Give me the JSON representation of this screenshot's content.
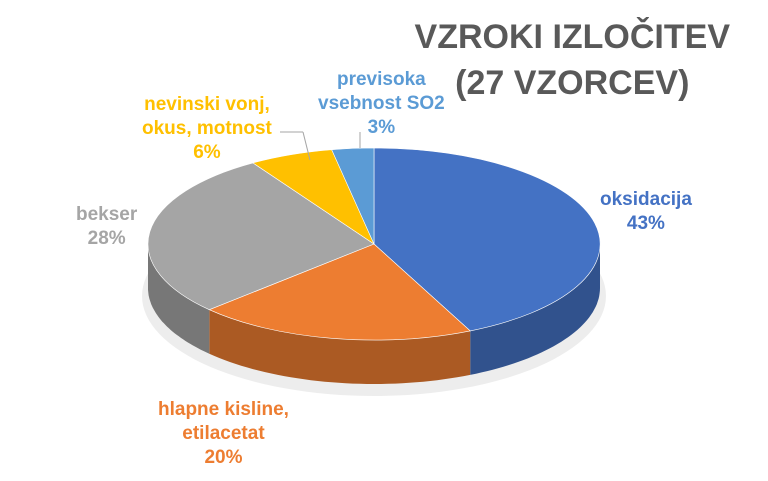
{
  "title": {
    "line1": "VZROKI IZLOČITEV",
    "line2": "(27 VZORCEV)"
  },
  "chart_data": {
    "type": "pie",
    "title": "VZROKI IZLOČITEV (27 VZORCEV)",
    "slices": [
      {
        "label": [
          "oksidacija"
        ],
        "value": 43,
        "percent_label": "43%",
        "color": "#4472C4"
      },
      {
        "label": [
          "hlapne kisline,",
          "etilacetat"
        ],
        "value": 20,
        "percent_label": "20%",
        "color": "#ED7D31"
      },
      {
        "label": [
          "bekser"
        ],
        "value": 28,
        "percent_label": "28%",
        "color": "#A5A5A5"
      },
      {
        "label": [
          "nevinski vonj,",
          "okus, motnost"
        ],
        "value": 6,
        "percent_label": "6%",
        "color": "#FFC000"
      },
      {
        "label": [
          "previsoka",
          "vsebnost SO2"
        ],
        "value": 3,
        "percent_label": "3%",
        "color": "#5B9BD5"
      }
    ]
  }
}
